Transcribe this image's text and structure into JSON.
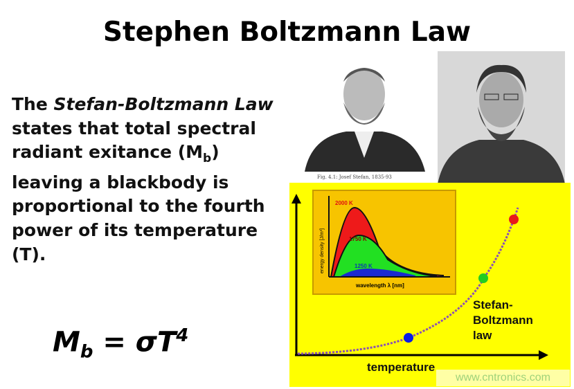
{
  "title": "Stephen Boltzmann Law",
  "body": {
    "p1": "The ",
    "italic": "Stefan-Boltzmann Law",
    "p2": " states that total spectral radiant exitance (M",
    "sub": "b",
    "p3": ") leaving a blackbody is proportional to the fourth power of its temperature (T)."
  },
  "formula": {
    "lhs": "M",
    "lhs_sub": "b",
    "eq": " = σT",
    "exp": "4"
  },
  "caption": "Fig. 4.1: Josef Stefan, 1835-93",
  "figure": {
    "xlabel": "temperature",
    "curve_label": [
      "Stefan-",
      "Boltzmann",
      "law"
    ],
    "point_colors": [
      "#0a1be6",
      "#22cc22",
      "#e81a1a"
    ],
    "background": "#ffff00",
    "inset": {
      "background": "#f7c400",
      "xlabel": "wavelength λ [nm]",
      "ylabel": "energy density [J/m³]",
      "series": [
        "2000 K",
        "1750 K",
        "1250 K"
      ],
      "colors": [
        "#ee1a1a",
        "#22e022",
        "#1a2ad0"
      ]
    }
  },
  "watermark": "www.cntronics.com"
}
